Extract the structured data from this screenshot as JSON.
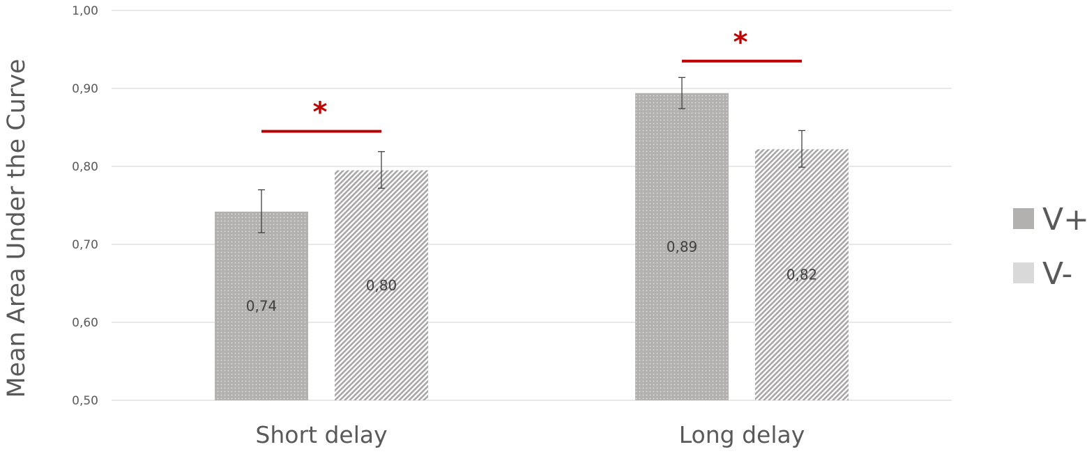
{
  "chart_data": {
    "type": "bar",
    "title": "",
    "xlabel": "",
    "ylabel": "Mean Area Under the Curve",
    "categories": [
      "Short delay",
      "Long delay"
    ],
    "ylim": [
      0.5,
      1.0
    ],
    "yticks": [
      0.5,
      0.6,
      0.7,
      0.8,
      0.9,
      1.0
    ],
    "ytick_labels": [
      "0,50",
      "0,60",
      "0,70",
      "0,80",
      "0,90",
      "1,00"
    ],
    "grid": true,
    "legend_position": "right",
    "series": [
      {
        "name": "V+",
        "values": [
          0.742,
          0.894
        ],
        "value_labels": [
          "0,74",
          "0,89"
        ],
        "error_low": [
          0.715,
          0.874
        ],
        "error_high": [
          0.77,
          0.914
        ],
        "color": "#b3b0b0",
        "pattern": "dots"
      },
      {
        "name": "V-",
        "values": [
          0.795,
          0.822
        ],
        "value_labels": [
          "0,80",
          "0,82"
        ],
        "error_low": [
          0.772,
          0.799
        ],
        "error_high": [
          0.819,
          0.846
        ],
        "color": "#d9d9d9",
        "pattern": "diagonal-stripes"
      }
    ],
    "significance": [
      {
        "category": "Short delay",
        "marker": "*",
        "level": 0.845
      },
      {
        "category": "Long delay",
        "marker": "*",
        "level": 0.935
      }
    ],
    "colors": {
      "significance": "#c00000",
      "grid": "#d9d9d9",
      "error_bar": "#404040",
      "text": "#595959"
    }
  }
}
